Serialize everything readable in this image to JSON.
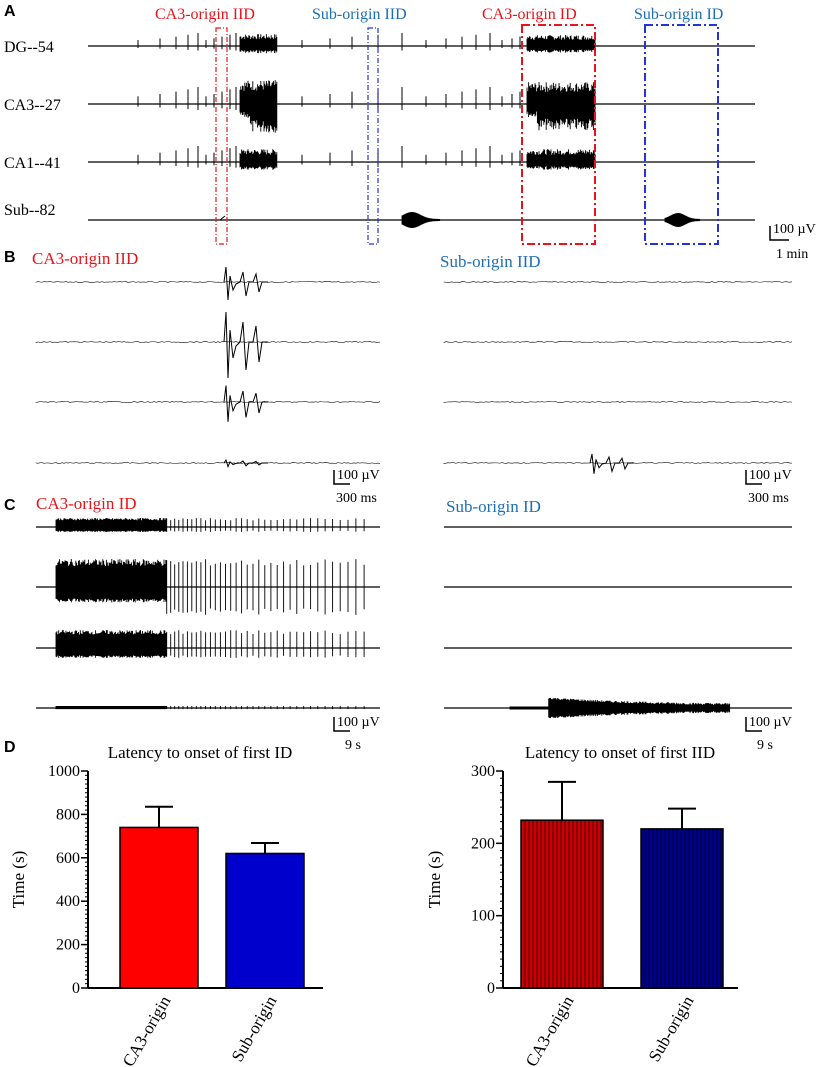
{
  "panels": {
    "a": "A",
    "b": "B",
    "c": "C",
    "d": "D"
  },
  "panel_a": {
    "traces": [
      {
        "name": "DG--54"
      },
      {
        "name": "CA3--27"
      },
      {
        "name": "CA1--41"
      },
      {
        "name": "Sub--82"
      }
    ],
    "box_labels": [
      "CA3-origin IID",
      "Sub-origin IID",
      "CA3-origin ID",
      "Sub-origin ID"
    ],
    "scale_v": "100 µV",
    "scale_t": "1 min"
  },
  "panel_b": {
    "left_title": "CA3-origin IID",
    "right_title": "Sub-origin IID",
    "scale_v": "100 µV",
    "scale_t": "300 ms"
  },
  "panel_c": {
    "left_title": "CA3-origin ID",
    "right_title": "Sub-origin ID",
    "scale_v": "100 µV",
    "scale_t": "9 s"
  },
  "colors": {
    "ca3": "#ff0000",
    "sub": "#0000cc",
    "ca3_hatched": "#cc0000",
    "sub_hatched": "#000088",
    "label_red": "#e8141b",
    "label_blue": "#1c6fb6"
  },
  "chart_data": [
    {
      "type": "bar",
      "title": "Latency to onset of first ID",
      "categories": [
        "CA3-origin",
        "Sub-origin"
      ],
      "values": [
        740,
        620
      ],
      "errors": [
        95,
        48
      ],
      "ylabel": "Time (s)",
      "xlabel": "",
      "ylim": [
        0,
        1000
      ],
      "yticks": [
        "0",
        "200",
        "400",
        "600",
        "800",
        "1000"
      ]
    },
    {
      "type": "bar",
      "title": "Latency to onset of first IID",
      "categories": [
        "CA3-origin",
        "Sub-origin"
      ],
      "values": [
        232,
        220
      ],
      "errors": [
        53,
        28
      ],
      "ylabel": "Time (s)",
      "xlabel": "",
      "ylim": [
        0,
        300
      ],
      "yticks": [
        "0",
        "100",
        "200",
        "300"
      ]
    }
  ]
}
